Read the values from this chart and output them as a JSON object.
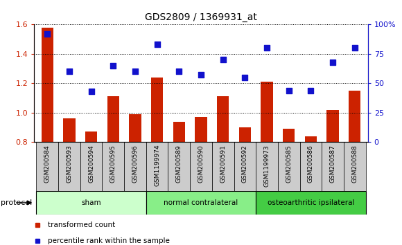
{
  "title": "GDS2809 / 1369931_at",
  "samples": [
    "GSM200584",
    "GSM200593",
    "GSM200594",
    "GSM200595",
    "GSM200596",
    "GSM1199974",
    "GSM200589",
    "GSM200590",
    "GSM200591",
    "GSM200592",
    "GSM1199973",
    "GSM200585",
    "GSM200586",
    "GSM200587",
    "GSM200588"
  ],
  "transformed_count": [
    1.58,
    0.96,
    0.87,
    1.11,
    0.99,
    1.24,
    0.94,
    0.97,
    1.11,
    0.9,
    1.21,
    0.89,
    0.84,
    1.02,
    1.15
  ],
  "percentile_rank": [
    92,
    60,
    43,
    65,
    60,
    83,
    60,
    57,
    70,
    55,
    80,
    44,
    44,
    68,
    80
  ],
  "bar_color": "#cc2200",
  "dot_color": "#1111cc",
  "ylim_left": [
    0.8,
    1.6
  ],
  "ylim_right": [
    0,
    100
  ],
  "yticks_left": [
    0.8,
    1.0,
    1.2,
    1.4,
    1.6
  ],
  "ytick_labels_right": [
    "0",
    "25",
    "50",
    "75",
    "100%"
  ],
  "yticks_right": [
    0,
    25,
    50,
    75,
    100
  ],
  "groups": [
    {
      "label": "sham",
      "start": 0,
      "end": 5,
      "color": "#ccffcc"
    },
    {
      "label": "normal contralateral",
      "start": 5,
      "end": 10,
      "color": "#88ee88"
    },
    {
      "label": "osteoarthritic ipsilateral",
      "start": 10,
      "end": 15,
      "color": "#44cc44"
    }
  ],
  "protocol_label": "protocol",
  "legend_items": [
    {
      "label": "transformed count",
      "color": "#cc2200",
      "marker": "s"
    },
    {
      "label": "percentile rank within the sample",
      "color": "#1111cc",
      "marker": "s"
    }
  ],
  "bar_color_red": "#cc2200",
  "dot_color_blue": "#1111cc",
  "grid_style": "dotted",
  "bar_width": 0.55,
  "dot_size": 40,
  "ticklabel_bgcolor": "#cccccc",
  "bg_white": "#ffffff"
}
